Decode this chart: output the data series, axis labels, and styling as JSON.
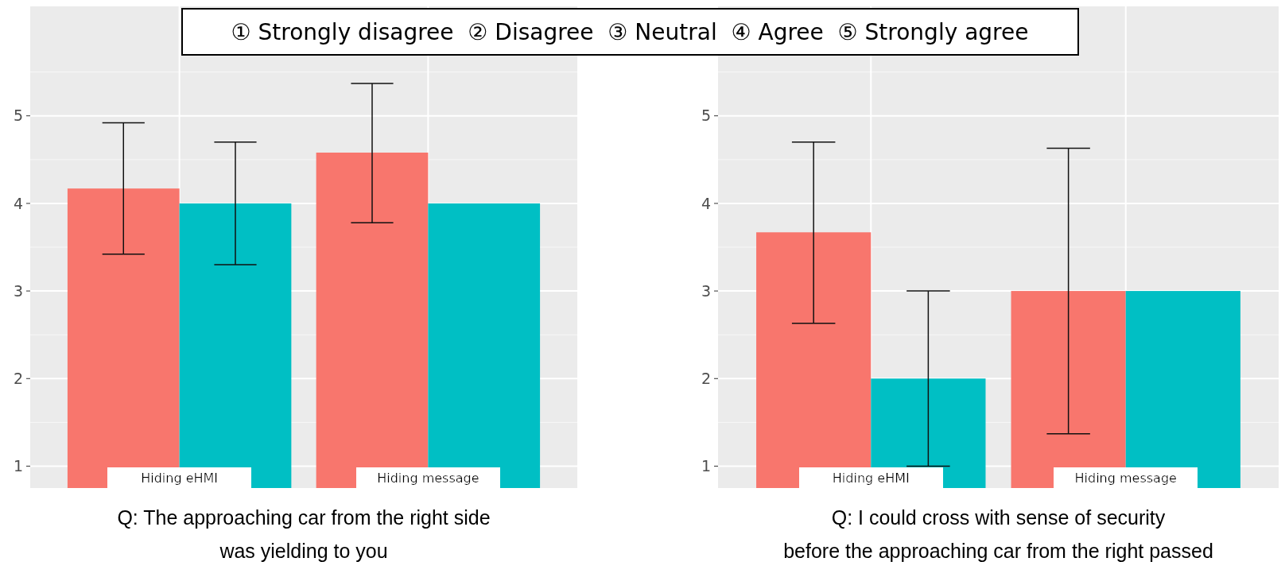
{
  "chart_data": [
    {
      "type": "bar",
      "title": "Q: The approaching car from the right side\nwas yielding to you",
      "categories": [
        "Hiding eHMI",
        "Hiding message"
      ],
      "annotations": [
        "① Strongly disagree  ② Disagree  ③ Neutral  ④ Agree  ⑤ Strongly agree"
      ],
      "series": [
        {
          "color": "#f8766d",
          "values": [
            4.17,
            4.58
          ],
          "errors": [
            [
              3.42,
              4.92
            ],
            [
              3.78,
              5.37
            ]
          ]
        },
        {
          "color": "#00bfc4",
          "values": [
            4.0,
            4.0
          ],
          "errors": [
            [
              3.3,
              4.7
            ],
            null
          ]
        }
      ],
      "ylim": [
        0.75,
        6.25
      ],
      "yticks": [
        1,
        2,
        3,
        4,
        5
      ],
      "grid": true
    },
    {
      "type": "bar",
      "title": "Q: I could cross with sense of security\nbefore the approaching car from the right passed",
      "categories": [
        "Hiding eHMI",
        "Hiding message"
      ],
      "series": [
        {
          "color": "#f8766d",
          "values": [
            3.67,
            3.0
          ],
          "errors": [
            [
              2.63,
              4.7
            ],
            [
              1.37,
              4.63
            ]
          ]
        },
        {
          "color": "#00bfc4",
          "values": [
            2.0,
            3.0
          ],
          "errors": [
            [
              1.0,
              3.0
            ],
            null
          ]
        }
      ],
      "ylim": [
        0.75,
        6.25
      ],
      "yticks": [
        1,
        2,
        3,
        4,
        5
      ],
      "grid": true
    }
  ]
}
